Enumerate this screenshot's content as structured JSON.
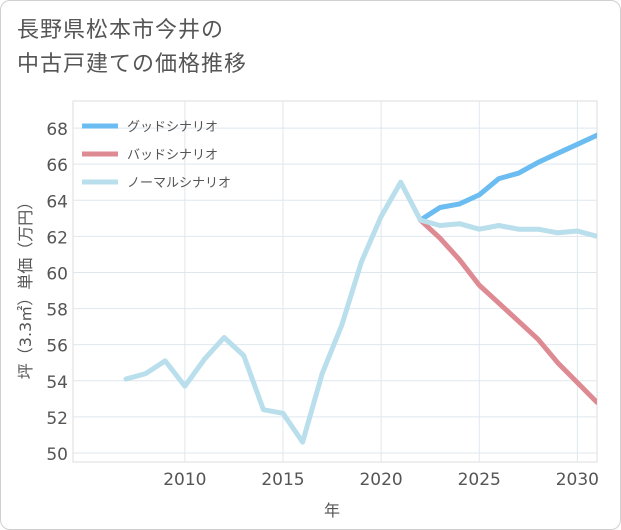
{
  "chart_data": {
    "type": "line",
    "title": "長野県松本市今井の\n中古戸建ての価格推移",
    "xlabel": "年",
    "ylabel": "坪（3.3㎡）単価（万円）",
    "xlim": [
      2004.3,
      2031
    ],
    "ylim": [
      49.5,
      69.5
    ],
    "x_ticks": [
      2010,
      2015,
      2020,
      2025,
      2030
    ],
    "y_ticks": [
      50,
      52,
      54,
      56,
      58,
      60,
      62,
      64,
      66,
      68
    ],
    "grid": true,
    "legend_position": "top-left",
    "series": [
      {
        "name": "グッドシナリオ",
        "color": "#6bbcf0",
        "x": [
          2022,
          2023,
          2024,
          2025,
          2026,
          2027,
          2028,
          2029,
          2030,
          2031
        ],
        "values": [
          62.9,
          63.6,
          63.8,
          64.3,
          65.2,
          65.5,
          66.1,
          66.6,
          67.1,
          67.6
        ]
      },
      {
        "name": "バッドシナリオ",
        "color": "#de8a93",
        "x": [
          2022,
          2023,
          2024,
          2025,
          2026,
          2027,
          2028,
          2029,
          2030,
          2031
        ],
        "values": [
          62.9,
          61.9,
          60.7,
          59.3,
          58.3,
          57.3,
          56.3,
          55.0,
          53.9,
          52.8
        ]
      },
      {
        "name": "ノーマルシナリオ",
        "color": "#b9deec",
        "x": [
          2007,
          2008,
          2009,
          2010,
          2011,
          2012,
          2013,
          2014,
          2015,
          2016,
          2017,
          2018,
          2019,
          2020,
          2021,
          2022,
          2023,
          2024,
          2025,
          2026,
          2027,
          2028,
          2029,
          2030,
          2031
        ],
        "values": [
          54.1,
          54.4,
          55.1,
          53.7,
          55.2,
          56.4,
          55.4,
          52.4,
          52.2,
          50.6,
          54.4,
          57.1,
          60.6,
          63.1,
          65.0,
          62.9,
          62.6,
          62.7,
          62.4,
          62.6,
          62.4,
          62.4,
          62.2,
          62.3,
          62.0
        ]
      }
    ]
  }
}
